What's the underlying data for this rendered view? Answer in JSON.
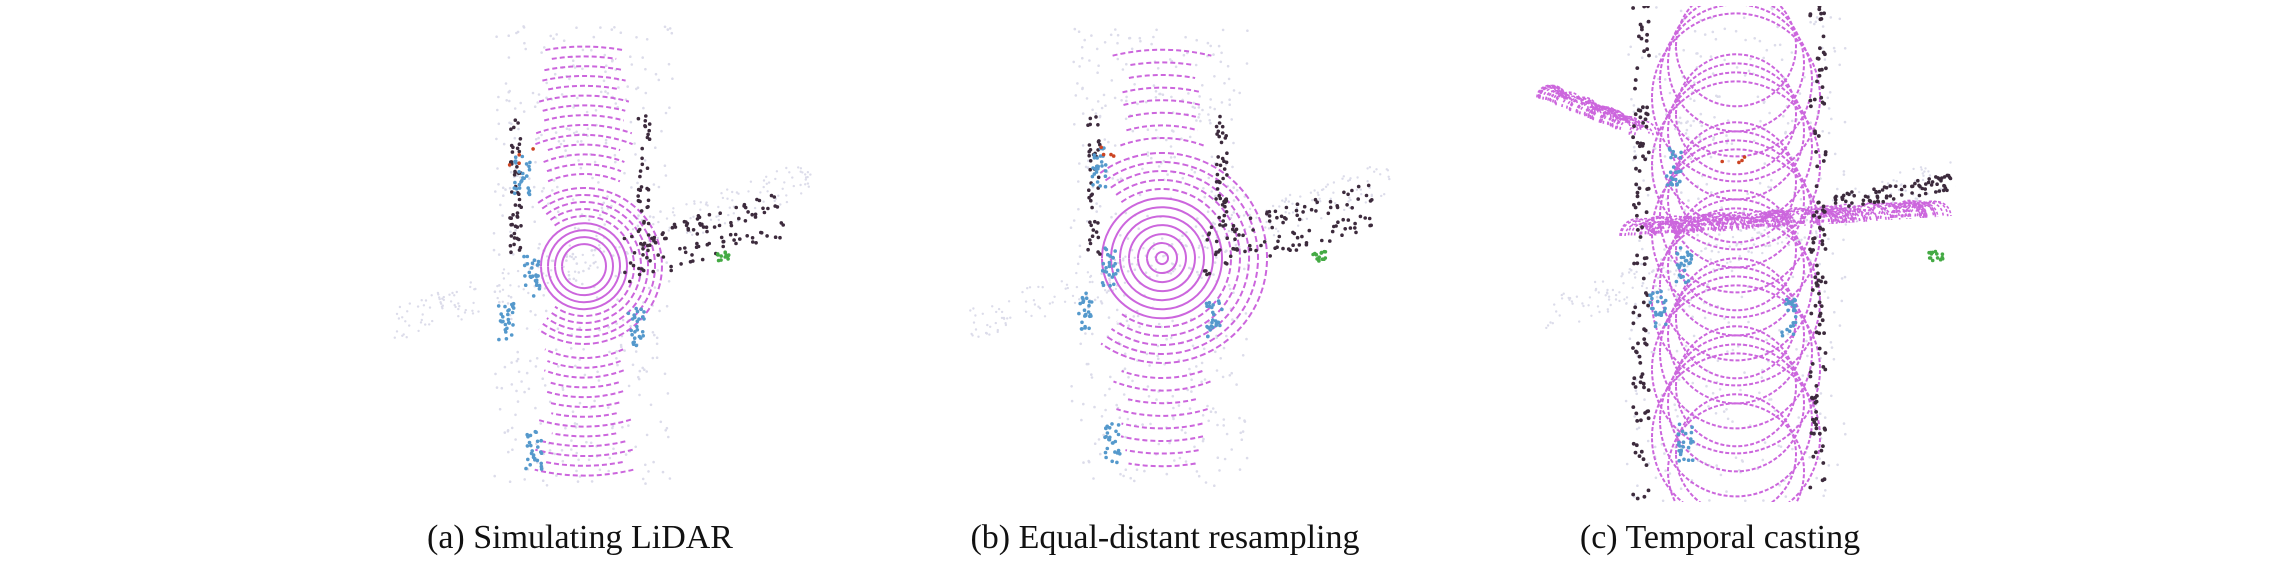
{
  "figure": {
    "panels": [
      {
        "caption": "(a) Simulating LiDAR"
      },
      {
        "caption": "(b) Equal-distant resampling"
      },
      {
        "caption": "(c) Temporal casting"
      }
    ],
    "colors": {
      "road": "#cc66dd",
      "sidewalk": "#3d2b3d",
      "vehicle": "#5599cc",
      "vegetation": "#44aa44",
      "other": "#cc4422",
      "background_points": "#dcdcea"
    }
  }
}
